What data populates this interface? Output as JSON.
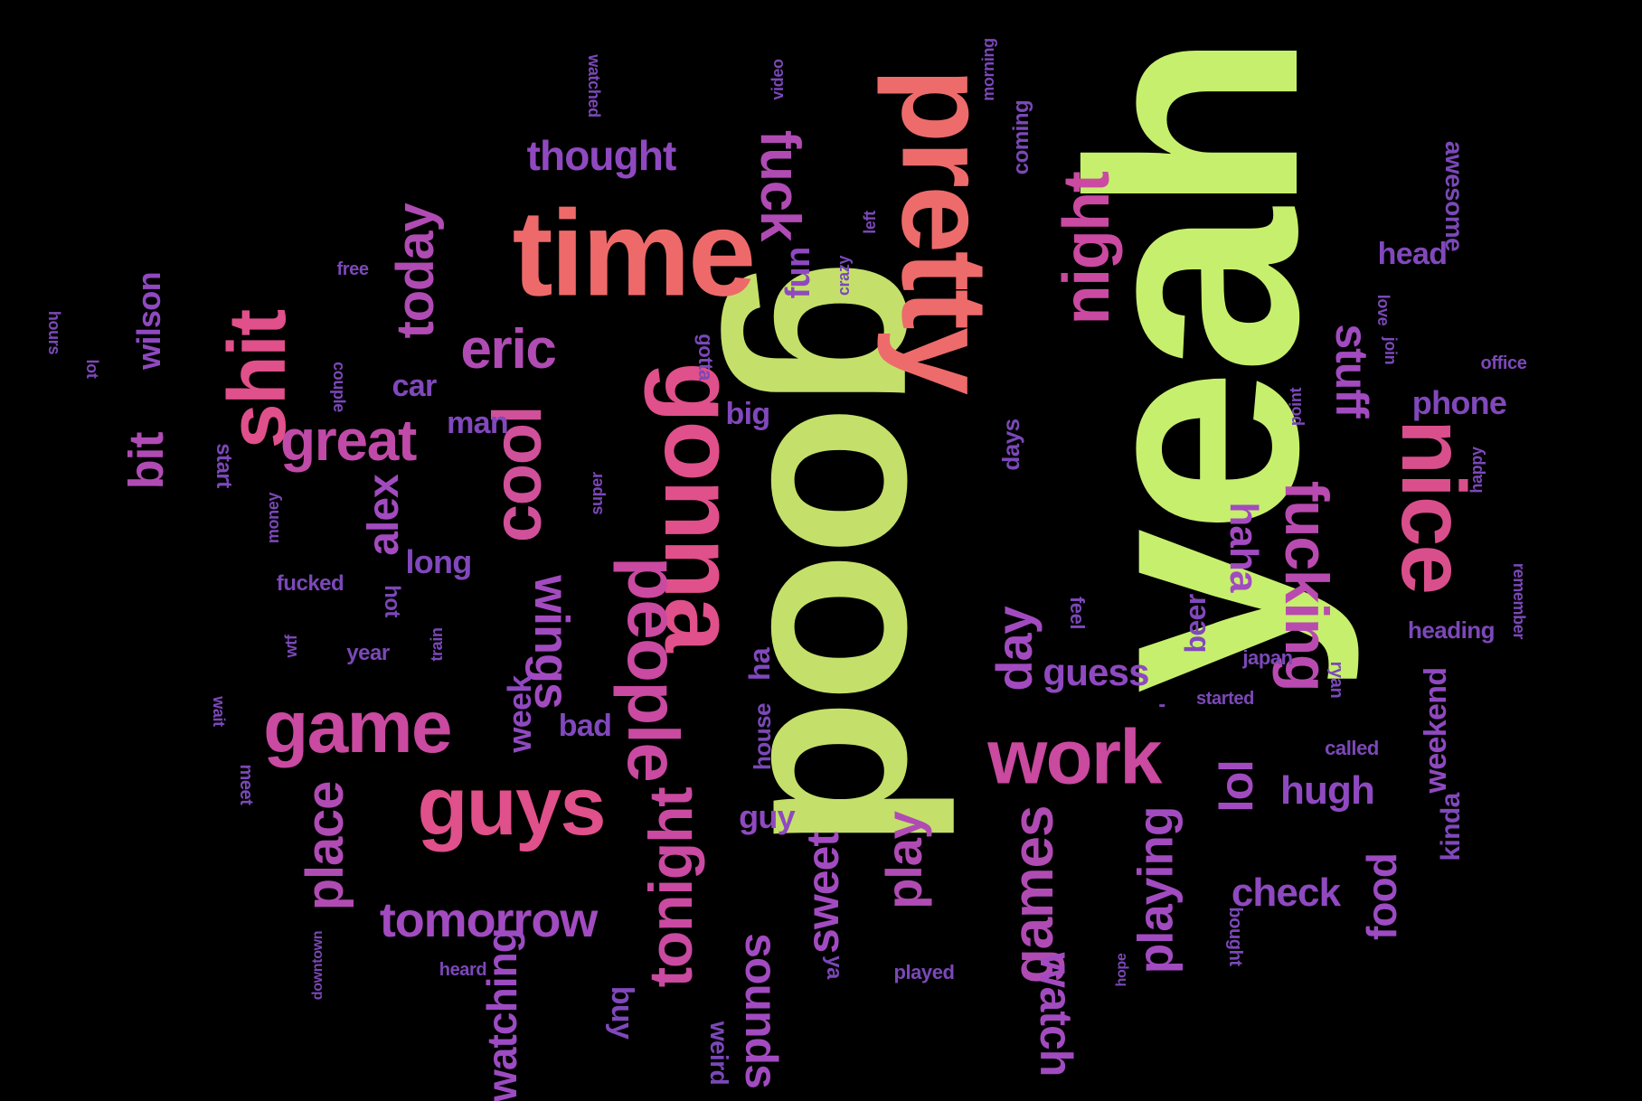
{
  "palette": {
    "lime": "#c6e86a",
    "coral": "#ee6b6b",
    "pink": "#e0508a",
    "magenta": "#cc4aa0",
    "violet": "#a24bc0",
    "indigo": "#7b48b8",
    "background": "#000000"
  },
  "words": [
    {
      "text": "yeah",
      "color": "#c7ef6e",
      "weight": 1.0
    },
    {
      "text": "good",
      "color": "#c4e06a",
      "weight": 0.95
    },
    {
      "text": "pretty",
      "color": "#ee6b6b",
      "weight": 0.7
    },
    {
      "text": "time",
      "color": "#ee6a6a",
      "weight": 0.6
    },
    {
      "text": "gonna",
      "color": "#e0508a",
      "weight": 0.58
    },
    {
      "text": "nice",
      "color": "#d94f8c",
      "weight": 0.52
    },
    {
      "text": "shit",
      "color": "#e0508a",
      "weight": 0.48
    },
    {
      "text": "guys",
      "color": "#e0508a",
      "weight": 0.47
    },
    {
      "text": "work",
      "color": "#c94a9f",
      "weight": 0.46
    },
    {
      "text": "game",
      "color": "#c94aa0",
      "weight": 0.45
    },
    {
      "text": "people",
      "color": "#c94aa0",
      "weight": 0.45
    },
    {
      "text": "night",
      "color": "#c94aa0",
      "weight": 0.44
    },
    {
      "text": "cool",
      "color": "#d0509a",
      "weight": 0.44
    },
    {
      "text": "fucking",
      "color": "#b94bb0",
      "weight": 0.42
    },
    {
      "text": "tonight",
      "color": "#c94aa0",
      "weight": 0.42
    },
    {
      "text": "games",
      "color": "#b04bb4",
      "weight": 0.4
    },
    {
      "text": "fuck",
      "color": "#b04bb4",
      "weight": 0.4
    },
    {
      "text": "today",
      "color": "#b04bb4",
      "weight": 0.36
    },
    {
      "text": "great",
      "color": "#c04aa8",
      "weight": 0.38
    },
    {
      "text": "eric",
      "color": "#b04bb4",
      "weight": 0.37
    },
    {
      "text": "place",
      "color": "#b04bb4",
      "weight": 0.36
    },
    {
      "text": "wings",
      "color": "#a24bc0",
      "weight": 0.35
    },
    {
      "text": "day",
      "color": "#a24bc0",
      "weight": 0.35
    },
    {
      "text": "play",
      "color": "#b04bb4",
      "weight": 0.35
    },
    {
      "text": "playing",
      "color": "#a24bc0",
      "weight": 0.34
    },
    {
      "text": "tomorrow",
      "color": "#a24bc0",
      "weight": 0.33
    },
    {
      "text": "bit",
      "color": "#b04bb4",
      "weight": 0.33
    },
    {
      "text": "lol",
      "color": "#a24bc0",
      "weight": 0.32
    },
    {
      "text": "stuff",
      "color": "#a24bc0",
      "weight": 0.31
    },
    {
      "text": "sweet",
      "color": "#a24bc0",
      "weight": 0.3
    },
    {
      "text": "watch",
      "color": "#a24bc0",
      "weight": 0.3
    },
    {
      "text": "sounds",
      "color": "#a24bc0",
      "weight": 0.3
    },
    {
      "text": "watching",
      "color": "#9c4bc2",
      "weight": 0.29
    },
    {
      "text": "food",
      "color": "#9c4bc2",
      "weight": 0.28
    },
    {
      "text": "haha",
      "color": "#a24bc0",
      "weight": 0.28
    },
    {
      "text": "thought",
      "color": "#8f49c0",
      "weight": 0.27
    },
    {
      "text": "alex",
      "color": "#a24bc0",
      "weight": 0.27
    },
    {
      "text": "hugh",
      "color": "#8f49c0",
      "weight": 0.26
    },
    {
      "text": "check",
      "color": "#8f49c0",
      "weight": 0.26
    },
    {
      "text": "guess",
      "color": "#8f49c0",
      "weight": 0.26
    },
    {
      "text": "wilson",
      "color": "#8f49c0",
      "weight": 0.25
    },
    {
      "text": "week",
      "color": "#8f49c0",
      "weight": 0.24
    },
    {
      "text": "long",
      "color": "#8148bc",
      "weight": 0.23
    },
    {
      "text": "fun",
      "color": "#8f49c0",
      "weight": 0.23
    },
    {
      "text": "weekend",
      "color": "#8f49c0",
      "weight": 0.23
    },
    {
      "text": "phone",
      "color": "#8148bc",
      "weight": 0.22
    },
    {
      "text": "guy",
      "color": "#8f49c0",
      "weight": 0.22
    },
    {
      "text": "bad",
      "color": "#8148bc",
      "weight": 0.21
    },
    {
      "text": "car",
      "color": "#8148bc",
      "weight": 0.21
    },
    {
      "text": "man",
      "color": "#8148bc",
      "weight": 0.21
    },
    {
      "text": "big",
      "color": "#8148bc",
      "weight": 0.21
    },
    {
      "text": "head",
      "color": "#8148bc",
      "weight": 0.21
    },
    {
      "text": "buy",
      "color": "#8148bc",
      "weight": 0.21
    },
    {
      "text": "beer",
      "color": "#8148bc",
      "weight": 0.2
    },
    {
      "text": "ha",
      "color": "#8148bc",
      "weight": 0.2
    },
    {
      "text": "kinda",
      "color": "#8148bc",
      "weight": 0.19
    },
    {
      "text": "awesome",
      "color": "#7b48b8",
      "weight": 0.19
    },
    {
      "text": "weird",
      "color": "#7b48b8",
      "weight": 0.18
    },
    {
      "text": "days",
      "color": "#7b48b8",
      "weight": 0.18
    },
    {
      "text": "house",
      "color": "#7b48b8",
      "weight": 0.18
    },
    {
      "text": "heading",
      "color": "#7b48b8",
      "weight": 0.17
    },
    {
      "text": "coming",
      "color": "#7b48b8",
      "weight": 0.17
    },
    {
      "text": "start",
      "color": "#7b48b8",
      "weight": 0.17
    },
    {
      "text": "hot",
      "color": "#7b48b8",
      "weight": 0.16
    },
    {
      "text": "fucked",
      "color": "#7b48b8",
      "weight": 0.16
    },
    {
      "text": "year",
      "color": "#7b48b8",
      "weight": 0.16
    },
    {
      "text": "ya",
      "color": "#7b48b8",
      "weight": 0.16
    },
    {
      "text": "gotta",
      "color": "#7b48b8",
      "weight": 0.16
    },
    {
      "text": "feel",
      "color": "#7b48b8",
      "weight": 0.15
    },
    {
      "text": "called",
      "color": "#7b48b8",
      "weight": 0.15
    },
    {
      "text": "meet",
      "color": "#7b48b8",
      "weight": 0.15
    },
    {
      "text": "bought",
      "color": "#7b48b8",
      "weight": 0.14
    },
    {
      "text": "played",
      "color": "#7b48b8",
      "weight": 0.14
    },
    {
      "text": "japan",
      "color": "#7b48b8",
      "weight": 0.14
    },
    {
      "text": "ryan",
      "color": "#7b48b8",
      "weight": 0.14
    },
    {
      "text": "started",
      "color": "#7b48b8",
      "weight": 0.14
    },
    {
      "text": "office",
      "color": "#7b48b8",
      "weight": 0.14
    },
    {
      "text": "heard",
      "color": "#7b48b8",
      "weight": 0.14
    },
    {
      "text": "remember",
      "color": "#7b48b8",
      "weight": 0.13
    },
    {
      "text": "watched",
      "color": "#7b48b8",
      "weight": 0.13
    },
    {
      "text": "video",
      "color": "#7b48b8",
      "weight": 0.13
    },
    {
      "text": "morning",
      "color": "#7b48b8",
      "weight": 0.13
    },
    {
      "text": "free",
      "color": "#7b48b8",
      "weight": 0.13
    },
    {
      "text": "left",
      "color": "#7b48b8",
      "weight": 0.13
    },
    {
      "text": "crazy",
      "color": "#7b48b8",
      "weight": 0.12
    },
    {
      "text": "love",
      "color": "#7b48b8",
      "weight": 0.12
    },
    {
      "text": "join",
      "color": "#7b48b8",
      "weight": 0.12
    },
    {
      "text": "point",
      "color": "#7b48b8",
      "weight": 0.12
    },
    {
      "text": "happy",
      "color": "#7b48b8",
      "weight": 0.12
    },
    {
      "text": "couple",
      "color": "#7b48b8",
      "weight": 0.12
    },
    {
      "text": "lot",
      "color": "#7b48b8",
      "weight": 0.12
    },
    {
      "text": "hours",
      "color": "#7b48b8",
      "weight": 0.12
    },
    {
      "text": "super",
      "color": "#7b48b8",
      "weight": 0.12
    },
    {
      "text": "money",
      "color": "#7b48b8",
      "weight": 0.12
    },
    {
      "text": "wtf",
      "color": "#7b48b8",
      "weight": 0.12
    },
    {
      "text": "train",
      "color": "#7b48b8",
      "weight": 0.12
    },
    {
      "text": "wait",
      "color": "#7b48b8",
      "weight": 0.12
    },
    {
      "text": "downtown",
      "color": "#7b48b8",
      "weight": 0.11
    },
    {
      "text": "hope",
      "color": "#7b48b8",
      "weight": 0.11
    },
    {
      "text": "-",
      "color": "#7b48b8",
      "weight": 0.12
    }
  ]
}
